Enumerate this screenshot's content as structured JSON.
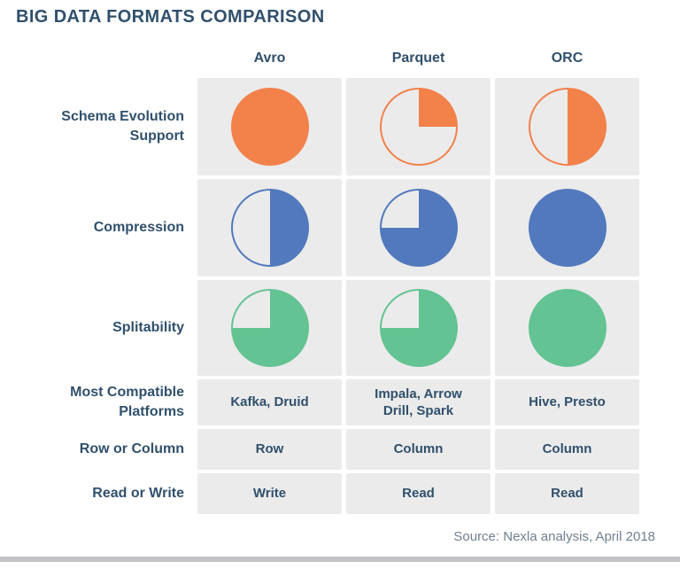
{
  "title": "BIG DATA FORMATS COMPARISON",
  "source_note": "Source: Nexla analysis, April 2018",
  "colors": {
    "orange": "#F2814A",
    "blue": "#5279BD",
    "green": "#63C392",
    "cell_background": "#EBEBEB",
    "heading_text": "#30506C",
    "source_text": "#6F8092",
    "bottom_divider": "#C3C3C7"
  },
  "chart_data": {
    "type": "table",
    "title": "BIG DATA FORMATS COMPARISON",
    "columns": [
      "Avro",
      "Parquet",
      "ORC"
    ],
    "rows": [
      {
        "label": "Schema Evolution Support",
        "cell_type": "pie",
        "color": "#F2814A",
        "values": [
          1,
          0.25,
          0.5
        ]
      },
      {
        "label": "Compression",
        "cell_type": "pie",
        "color": "#5279BD",
        "values": [
          0.5,
          0.75,
          1
        ]
      },
      {
        "label": "Splitability",
        "cell_type": "pie",
        "color": "#63C392",
        "values": [
          0.75,
          0.75,
          1
        ]
      },
      {
        "label": "Most Compatible Platforms",
        "cell_type": "text",
        "values": [
          "Kafka, Druid",
          "Impala, Arrow Drill, Spark",
          "Hive, Presto"
        ]
      },
      {
        "label": "Row or Column",
        "cell_type": "text",
        "values": [
          "Row",
          "Column",
          "Column"
        ]
      },
      {
        "label": "Read or Write",
        "cell_type": "text",
        "values": [
          "Write",
          "Read",
          "Read"
        ]
      }
    ],
    "legend": "none",
    "source": "Source: Nexla analysis, April 2018"
  }
}
